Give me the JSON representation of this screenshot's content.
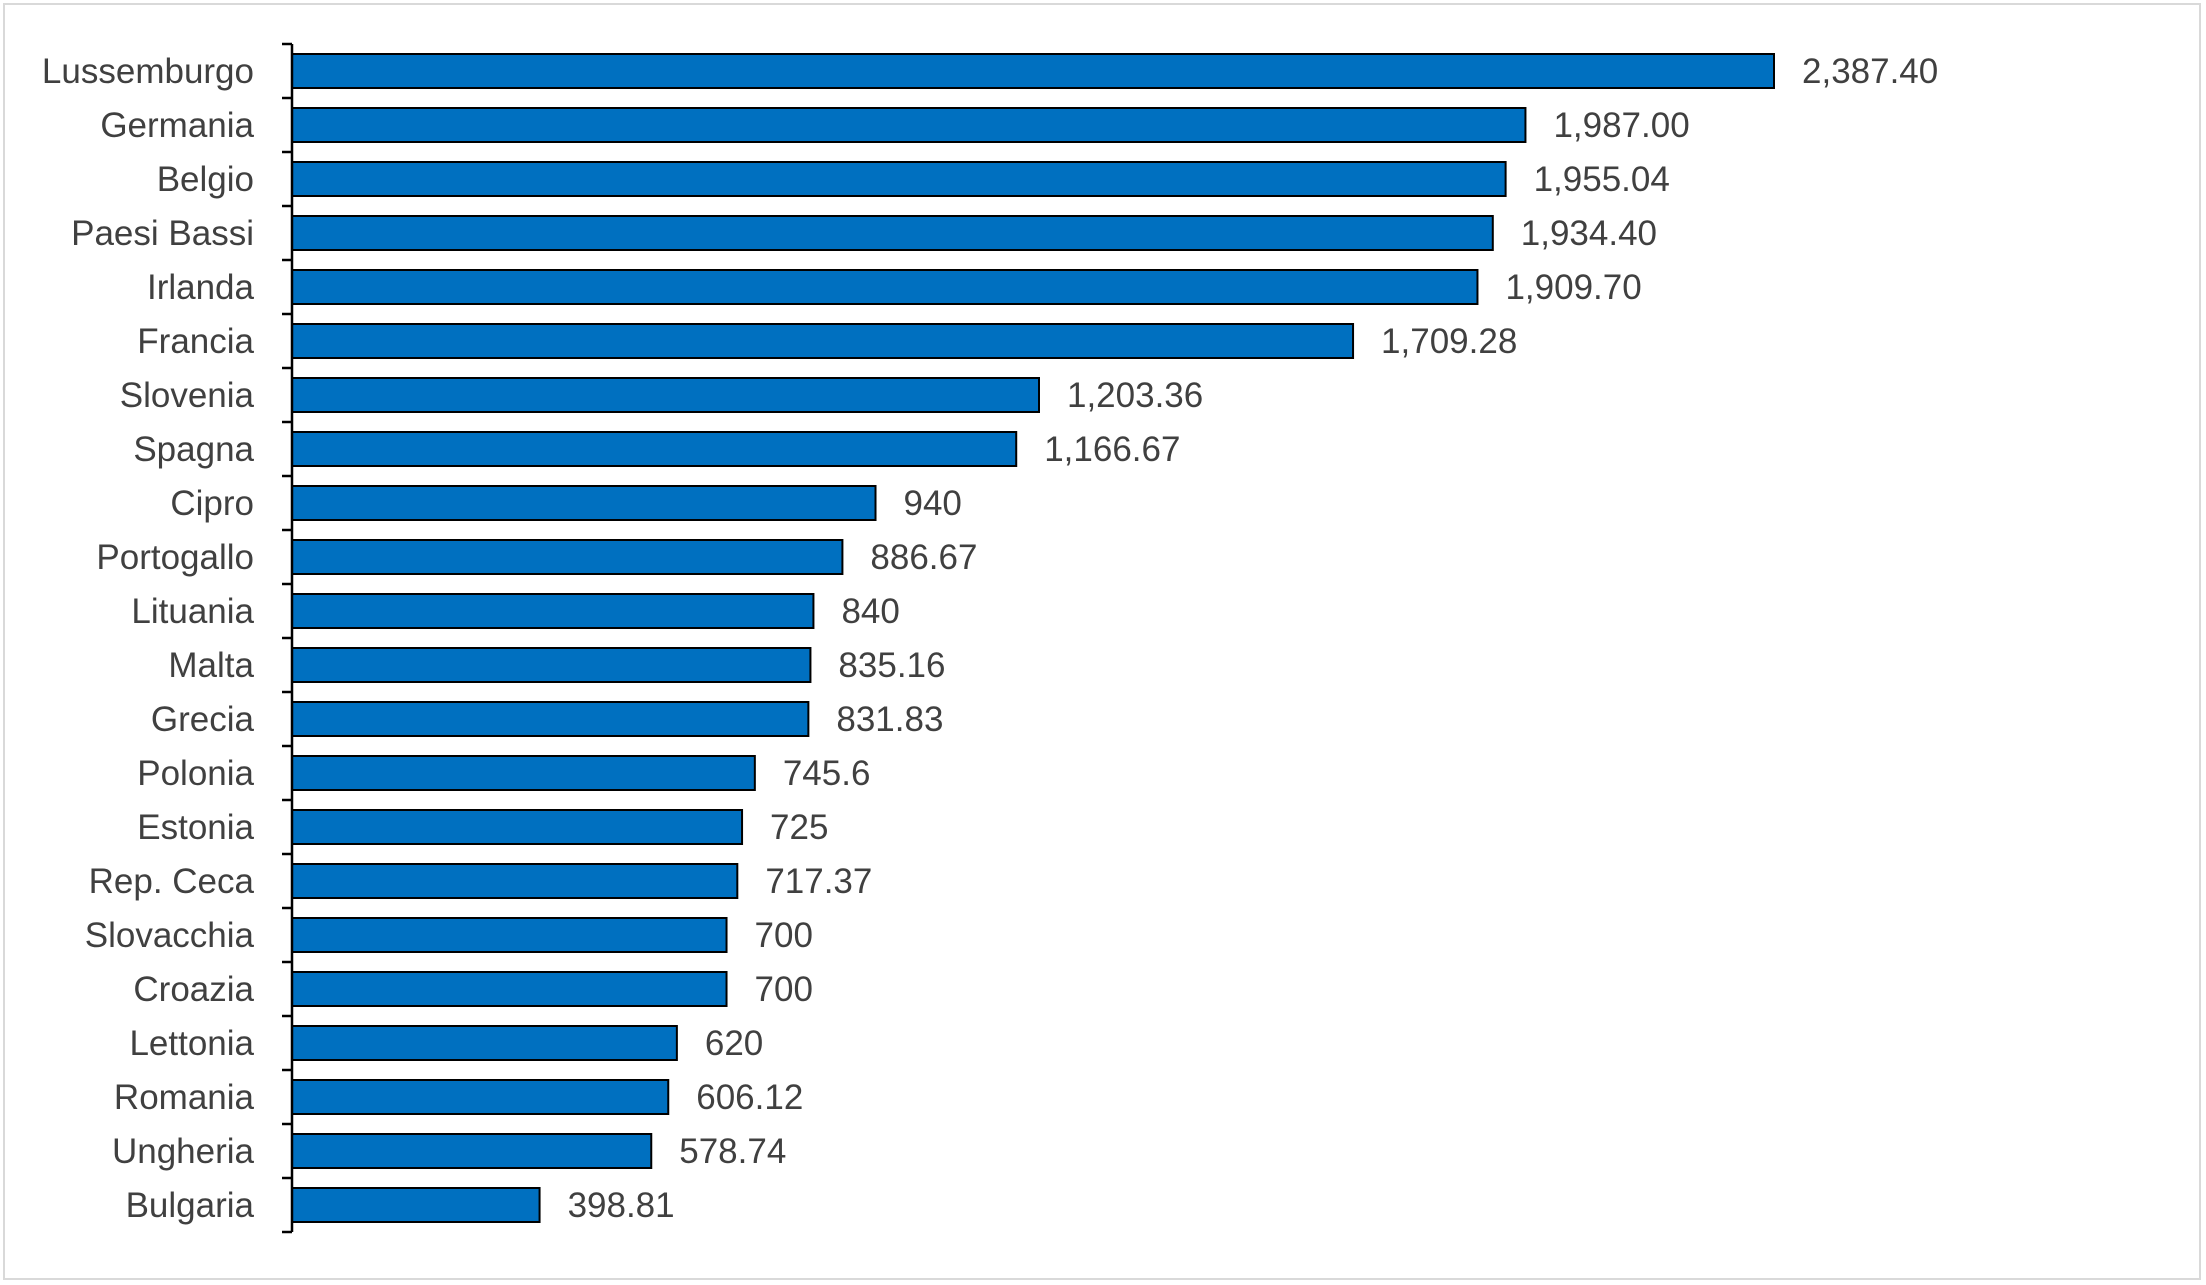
{
  "chart_data": {
    "type": "bar",
    "orientation": "horizontal",
    "categories": [
      "Lussemburgo",
      "Germania",
      "Belgio",
      "Paesi Bassi",
      "Irlanda",
      "Francia",
      "Slovenia",
      "Spagna",
      "Cipro",
      "Portogallo",
      "Lituania",
      "Malta",
      "Grecia",
      "Polonia",
      "Estonia",
      "Rep. Ceca",
      "Slovacchia",
      "Croazia",
      "Lettonia",
      "Romania",
      "Ungheria",
      "Bulgaria"
    ],
    "values": [
      2387.4,
      1987.0,
      1955.04,
      1934.4,
      1909.7,
      1709.28,
      1203.36,
      1166.67,
      940,
      886.67,
      840,
      835.16,
      831.83,
      745.6,
      725,
      717.37,
      700,
      700,
      620,
      606.12,
      578.74,
      398.81
    ],
    "value_labels": [
      "2,387.40",
      "1,987.00",
      "1,955.04",
      "1,934.40",
      "1,909.70",
      "1,709.28",
      "1,203.36",
      "1,166.67",
      "940",
      "886.67",
      "840",
      "835.16",
      "831.83",
      "745.6",
      "725",
      "717.37",
      "700",
      "700",
      "620",
      "606.12",
      "578.74",
      "398.81"
    ],
    "title": "",
    "xlabel": "",
    "ylabel": "",
    "xlim": [
      0,
      2500
    ],
    "grid": false,
    "legend": "none",
    "colors": {
      "bar_fill": "#0070c0",
      "bar_stroke": "#000000",
      "axis": "#000000",
      "text": "#404040",
      "frame": "#d9d9d9"
    }
  }
}
